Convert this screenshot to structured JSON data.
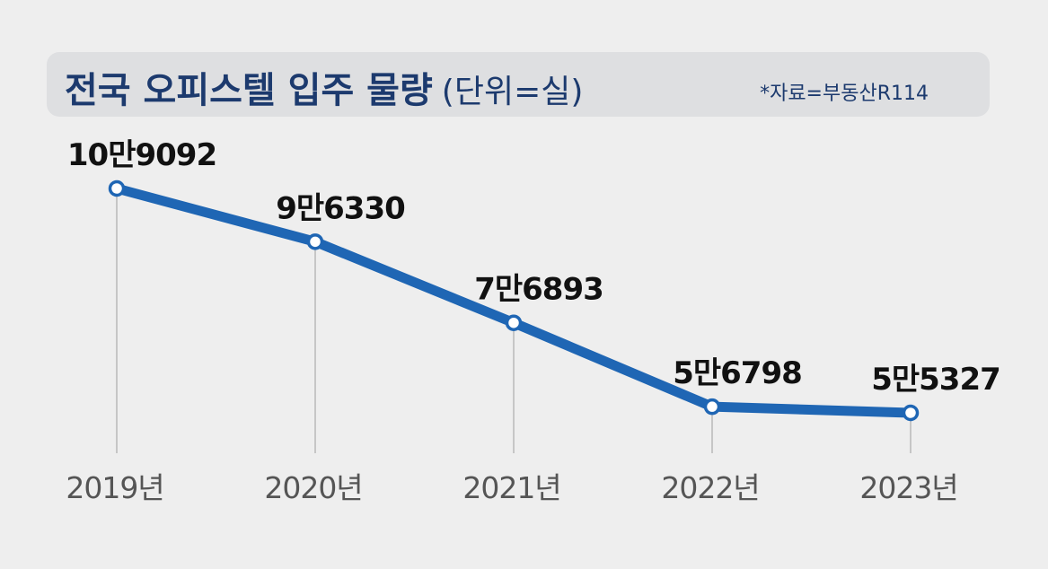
{
  "header": {
    "title": "전국 오피스텔 입주 물량",
    "unit": "(단위=실)",
    "source": "*자료=부동산R114"
  },
  "chart_data": {
    "type": "line",
    "title": "전국 오피스텔 입주 물량",
    "unit": "(단위=실)",
    "categories": [
      "2019년",
      "2020년",
      "2021년",
      "2022년",
      "2023년"
    ],
    "values": [
      109092,
      96330,
      76893,
      56798,
      55327
    ],
    "data_labels": [
      "10만9092",
      "9만6330",
      "7만6893",
      "5만6798",
      "5만5327"
    ],
    "colors": {
      "line": "#1f66b4",
      "marker_fill": "#ffffff",
      "grid": "#b8b8b8"
    },
    "grid": "vertical drop lines per category",
    "legend": "none"
  }
}
